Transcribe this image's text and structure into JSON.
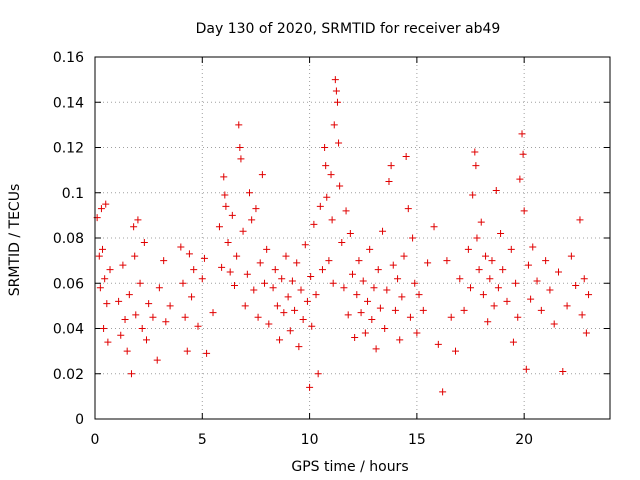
{
  "chart_data": {
    "type": "scatter",
    "title": "Day 130 of 2020, SRMTID for receiver ab49",
    "xlabel": "GPS time / hours",
    "ylabel": "SRMTID / TECUs",
    "xlim": [
      0,
      24
    ],
    "ylim": [
      0,
      0.16
    ],
    "xticks": [
      0,
      5,
      10,
      15,
      20
    ],
    "xtick_labels": [
      "0",
      "5",
      "10",
      "15",
      "20"
    ],
    "yticks": [
      0,
      0.02,
      0.04,
      0.06,
      0.08,
      0.1,
      0.12,
      0.14,
      0.16
    ],
    "ytick_labels": [
      "0",
      "0.02",
      "0.04",
      "0.06",
      "0.08",
      "0.1",
      "0.12",
      "0.14",
      "0.16"
    ],
    "grid": true,
    "marker": "+",
    "color": "#e00000",
    "series": [
      {
        "name": "SRMTID",
        "points": [
          [
            0.1,
            0.089
          ],
          [
            0.2,
            0.072
          ],
          [
            0.25,
            0.058
          ],
          [
            0.3,
            0.093
          ],
          [
            0.35,
            0.075
          ],
          [
            0.4,
            0.04
          ],
          [
            0.45,
            0.062
          ],
          [
            0.5,
            0.095
          ],
          [
            0.55,
            0.051
          ],
          [
            0.6,
            0.034
          ],
          [
            0.7,
            0.066
          ],
          [
            1.1,
            0.052
          ],
          [
            1.2,
            0.037
          ],
          [
            1.3,
            0.068
          ],
          [
            1.4,
            0.044
          ],
          [
            1.5,
            0.03
          ],
          [
            1.6,
            0.055
          ],
          [
            1.7,
            0.02
          ],
          [
            1.8,
            0.085
          ],
          [
            1.85,
            0.072
          ],
          [
            1.9,
            0.046
          ],
          [
            2.0,
            0.088
          ],
          [
            2.1,
            0.06
          ],
          [
            2.2,
            0.04
          ],
          [
            2.3,
            0.078
          ],
          [
            2.4,
            0.035
          ],
          [
            2.5,
            0.051
          ],
          [
            2.7,
            0.045
          ],
          [
            2.9,
            0.026
          ],
          [
            3.0,
            0.058
          ],
          [
            3.2,
            0.07
          ],
          [
            3.3,
            0.043
          ],
          [
            3.5,
            0.05
          ],
          [
            4.0,
            0.076
          ],
          [
            4.1,
            0.06
          ],
          [
            4.2,
            0.045
          ],
          [
            4.3,
            0.03
          ],
          [
            4.4,
            0.073
          ],
          [
            4.5,
            0.054
          ],
          [
            4.6,
            0.066
          ],
          [
            4.8,
            0.041
          ],
          [
            5.0,
            0.062
          ],
          [
            5.1,
            0.071
          ],
          [
            5.2,
            0.029
          ],
          [
            5.5,
            0.047
          ],
          [
            5.8,
            0.085
          ],
          [
            5.9,
            0.067
          ],
          [
            6.0,
            0.107
          ],
          [
            6.05,
            0.099
          ],
          [
            6.1,
            0.094
          ],
          [
            6.2,
            0.078
          ],
          [
            6.3,
            0.065
          ],
          [
            6.4,
            0.09
          ],
          [
            6.5,
            0.059
          ],
          [
            6.6,
            0.072
          ],
          [
            6.7,
            0.13
          ],
          [
            6.75,
            0.12
          ],
          [
            6.8,
            0.115
          ],
          [
            6.9,
            0.083
          ],
          [
            7.0,
            0.05
          ],
          [
            7.1,
            0.064
          ],
          [
            7.2,
            0.1
          ],
          [
            7.3,
            0.088
          ],
          [
            7.4,
            0.057
          ],
          [
            7.5,
            0.093
          ],
          [
            7.6,
            0.045
          ],
          [
            7.7,
            0.069
          ],
          [
            7.8,
            0.108
          ],
          [
            7.9,
            0.06
          ],
          [
            8.0,
            0.075
          ],
          [
            8.1,
            0.042
          ],
          [
            8.3,
            0.058
          ],
          [
            8.4,
            0.066
          ],
          [
            8.5,
            0.05
          ],
          [
            8.6,
            0.035
          ],
          [
            8.7,
            0.062
          ],
          [
            8.8,
            0.047
          ],
          [
            8.9,
            0.072
          ],
          [
            9.0,
            0.054
          ],
          [
            9.1,
            0.039
          ],
          [
            9.2,
            0.061
          ],
          [
            9.3,
            0.048
          ],
          [
            9.4,
            0.069
          ],
          [
            9.5,
            0.032
          ],
          [
            9.6,
            0.057
          ],
          [
            9.7,
            0.044
          ],
          [
            9.8,
            0.077
          ],
          [
            9.9,
            0.052
          ],
          [
            10.0,
            0.014
          ],
          [
            10.05,
            0.063
          ],
          [
            10.1,
            0.041
          ],
          [
            10.2,
            0.086
          ],
          [
            10.3,
            0.055
          ],
          [
            10.4,
            0.02
          ],
          [
            10.5,
            0.094
          ],
          [
            10.6,
            0.066
          ],
          [
            10.7,
            0.12
          ],
          [
            10.75,
            0.112
          ],
          [
            10.8,
            0.098
          ],
          [
            10.9,
            0.07
          ],
          [
            11.0,
            0.108
          ],
          [
            11.05,
            0.088
          ],
          [
            11.1,
            0.06
          ],
          [
            11.15,
            0.13
          ],
          [
            11.2,
            0.15
          ],
          [
            11.25,
            0.145
          ],
          [
            11.3,
            0.14
          ],
          [
            11.35,
            0.122
          ],
          [
            11.4,
            0.103
          ],
          [
            11.5,
            0.078
          ],
          [
            11.6,
            0.058
          ],
          [
            11.7,
            0.092
          ],
          [
            11.8,
            0.046
          ],
          [
            11.9,
            0.082
          ],
          [
            12.0,
            0.064
          ],
          [
            12.1,
            0.036
          ],
          [
            12.2,
            0.055
          ],
          [
            12.3,
            0.07
          ],
          [
            12.4,
            0.047
          ],
          [
            12.5,
            0.061
          ],
          [
            12.6,
            0.038
          ],
          [
            12.7,
            0.052
          ],
          [
            12.8,
            0.075
          ],
          [
            12.9,
            0.044
          ],
          [
            13.0,
            0.058
          ],
          [
            13.1,
            0.031
          ],
          [
            13.2,
            0.066
          ],
          [
            13.3,
            0.049
          ],
          [
            13.4,
            0.083
          ],
          [
            13.5,
            0.04
          ],
          [
            13.6,
            0.057
          ],
          [
            13.7,
            0.105
          ],
          [
            13.8,
            0.112
          ],
          [
            13.9,
            0.068
          ],
          [
            14.0,
            0.048
          ],
          [
            14.1,
            0.062
          ],
          [
            14.2,
            0.035
          ],
          [
            14.3,
            0.054
          ],
          [
            14.4,
            0.072
          ],
          [
            14.5,
            0.116
          ],
          [
            14.6,
            0.093
          ],
          [
            14.7,
            0.045
          ],
          [
            14.8,
            0.08
          ],
          [
            14.9,
            0.06
          ],
          [
            15.0,
            0.038
          ],
          [
            15.1,
            0.055
          ],
          [
            15.3,
            0.048
          ],
          [
            15.5,
            0.069
          ],
          [
            15.8,
            0.085
          ],
          [
            16.0,
            0.033
          ],
          [
            16.2,
            0.012
          ],
          [
            16.4,
            0.07
          ],
          [
            16.6,
            0.045
          ],
          [
            16.8,
            0.03
          ],
          [
            17.0,
            0.062
          ],
          [
            17.2,
            0.048
          ],
          [
            17.4,
            0.075
          ],
          [
            17.5,
            0.058
          ],
          [
            17.6,
            0.099
          ],
          [
            17.7,
            0.118
          ],
          [
            17.75,
            0.112
          ],
          [
            17.8,
            0.08
          ],
          [
            17.9,
            0.066
          ],
          [
            18.0,
            0.087
          ],
          [
            18.1,
            0.055
          ],
          [
            18.2,
            0.072
          ],
          [
            18.3,
            0.043
          ],
          [
            18.4,
            0.062
          ],
          [
            18.5,
            0.07
          ],
          [
            18.6,
            0.05
          ],
          [
            18.7,
            0.101
          ],
          [
            18.8,
            0.058
          ],
          [
            18.9,
            0.082
          ],
          [
            19.0,
            0.066
          ],
          [
            19.2,
            0.052
          ],
          [
            19.4,
            0.075
          ],
          [
            19.5,
            0.034
          ],
          [
            19.6,
            0.06
          ],
          [
            19.7,
            0.045
          ],
          [
            19.8,
            0.106
          ],
          [
            19.9,
            0.126
          ],
          [
            19.95,
            0.117
          ],
          [
            20.0,
            0.092
          ],
          [
            20.1,
            0.022
          ],
          [
            20.2,
            0.068
          ],
          [
            20.3,
            0.053
          ],
          [
            20.4,
            0.076
          ],
          [
            20.6,
            0.061
          ],
          [
            20.8,
            0.048
          ],
          [
            21.0,
            0.07
          ],
          [
            21.2,
            0.057
          ],
          [
            21.4,
            0.042
          ],
          [
            21.6,
            0.065
          ],
          [
            21.8,
            0.021
          ],
          [
            22.0,
            0.05
          ],
          [
            22.2,
            0.072
          ],
          [
            22.4,
            0.059
          ],
          [
            22.6,
            0.088
          ],
          [
            22.7,
            0.046
          ],
          [
            22.8,
            0.062
          ],
          [
            22.9,
            0.038
          ],
          [
            23.0,
            0.055
          ]
        ]
      }
    ]
  }
}
